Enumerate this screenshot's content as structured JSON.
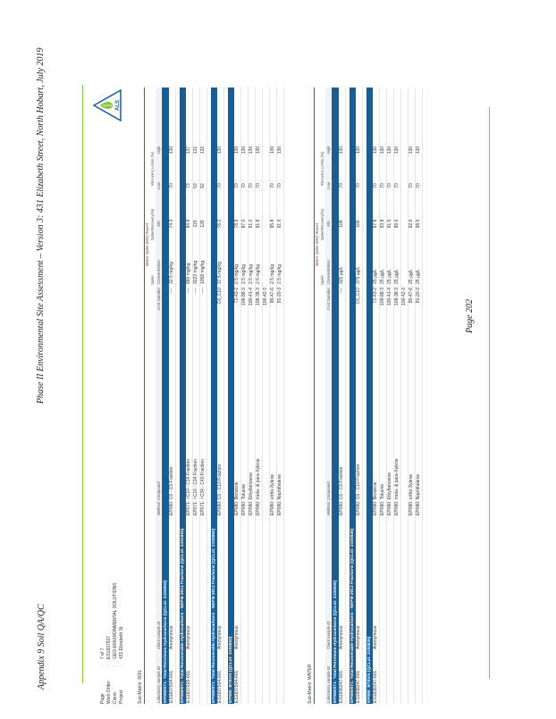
{
  "header": {
    "title": "Phase II Environmental Site Assessment – Version 3: 431 Elizabeth Street, North Hobart, July 2019",
    "appendix": "Appendix 9 Soil QA/QC",
    "page": "Page 202"
  },
  "meta": [
    {
      "key": "Page",
      "value": "7 of 7"
    },
    {
      "key": "Work Order",
      "value": "ES1837927"
    },
    {
      "key": "Client",
      "value": "GEO-ENVIRONMENTAL SOLUTIONS"
    },
    {
      "key": "Project",
      "value": "431 Elizabeth St"
    }
  ],
  "logo_text": "ALS",
  "soil": {
    "submatrix": "Sub-Matrix: SOIL",
    "group_labels": {
      "ms_report": "Matrix Spike (MS) Report",
      "spike": "Spike",
      "spike_rec": "SpikeRecovery(%)",
      "rec_limits": "Recovery Limits (%)"
    },
    "headers": {
      "lab": "Laboratory sample ID",
      "client": "Client sample ID",
      "method": "Method: Compound",
      "cas": "CAS Number",
      "conc": "Concentration",
      "ms": "MS",
      "low": "Low",
      "high": "High"
    },
    "sections": [
      {
        "title": "EP080/071: Total Petroleum Hydrocarbons  (QCLot: 2103852)",
        "rows": [
          {
            "lab": "ES1837504-001",
            "client": "Anonymous",
            "method": "EP080: C6 - C9 Fraction",
            "cas": "----",
            "conc": "32.5 mg/kg",
            "ms": "74.3",
            "low": "70",
            "high": "130"
          }
        ]
      },
      {
        "title": "EP080/071: Total Recoverable Hydrocarbons - NEPM 2013 Fractions  (QCLot: 2101822)",
        "rows": [
          {
            "lab": "ES1837928-001",
            "client": "Anonymous",
            "method": "EP071: >C10 - C16 Fraction",
            "cas": "----",
            "conc": "860 mg/kg",
            "ms": "94.8",
            "low": "73",
            "high": "137"
          },
          {
            "lab": "",
            "client": "",
            "method": "EP071: >C16 - C34 Fraction",
            "cas": "----",
            "conc": "3223 mg/kg",
            "ms": "115",
            "low": "53",
            "high": "131"
          },
          {
            "lab": "",
            "client": "",
            "method": "EP071: >C34 - C40 Fraction",
            "cas": "----",
            "conc": "1058 mg/kg",
            "ms": "128",
            "low": "52",
            "high": "132"
          }
        ]
      },
      {
        "title": "EP080/071: Total Recoverable Hydrocarbons - NEPM 2013 Fractions  (QCLot: 2103852)",
        "rows": [
          {
            "lab": "ES1837504-001",
            "client": "Anonymous",
            "method": "EP080: C6 - C10 Fraction",
            "cas": "C6_C10",
            "conc": "37.5 mg/kg",
            "ms": "76.2",
            "low": "70",
            "high": "130"
          }
        ]
      },
      {
        "title": "EP080: BTEXN  (QCLot: 2103852)",
        "rows": [
          {
            "lab": "ES1837504-001",
            "client": "Anonymous",
            "method": "EP080: Benzene",
            "cas": "71-43-2",
            "conc": "2.5 mg/kg",
            "ms": "78.9",
            "low": "70",
            "high": "130"
          },
          {
            "lab": "",
            "client": "",
            "method": "EP080: Toluene",
            "cas": "108-88-3",
            "conc": "2.5 mg/kg",
            "ms": "87.0",
            "low": "70",
            "high": "130"
          },
          {
            "lab": "",
            "client": "",
            "method": "EP080: Ethylbenzene",
            "cas": "100-41-4",
            "conc": "2.5 mg/kg",
            "ms": "91.0",
            "low": "70",
            "high": "130"
          },
          {
            "lab": "",
            "client": "",
            "method": "EP080: meta- & para-Xylene",
            "cas": "108-38-3",
            "conc": "2.5 mg/kg",
            "ms": "91.8",
            "low": "70",
            "high": "130"
          },
          {
            "lab": "",
            "client": "",
            "method": "",
            "cas": "106-42-3",
            "conc": "",
            "ms": "",
            "low": "",
            "high": ""
          },
          {
            "lab": "",
            "client": "",
            "method": "EP080: ortho-Xylene",
            "cas": "95-47-6",
            "conc": "2.5 mg/kg",
            "ms": "95.8",
            "low": "70",
            "high": "130"
          },
          {
            "lab": "",
            "client": "",
            "method": "EP080: Naphthalene",
            "cas": "91-20-3",
            "conc": "2.5 mg/kg",
            "ms": "91.0",
            "low": "70",
            "high": "130"
          }
        ]
      }
    ]
  },
  "water": {
    "submatrix": "Sub-Matrix: WATER",
    "group_labels": {
      "ms_report": "Matrix Spike (MS) Report",
      "spike": "Spike",
      "spike_rec": "SpikeRecovery(%)",
      "rec_limits": "Recovery Limits (%)"
    },
    "headers": {
      "lab": "Laboratory sample ID",
      "client": "Client sample ID",
      "method": "Method: Compound",
      "cas": "CAS Number",
      "conc": "Concentration",
      "ms": "MS",
      "low": "Low",
      "high": "High"
    },
    "sections": [
      {
        "title": "EP080/071: Total Petroleum Hydrocarbons  (QCLot: 2103835)",
        "rows": [
          {
            "lab": "ES1838347-001",
            "client": "Anonymous",
            "method": "EP080: C6 - C9 Fraction",
            "cas": "----",
            "conc": "325 µg/L",
            "ms": "108",
            "low": "70",
            "high": "130"
          }
        ]
      },
      {
        "title": "EP080/071: Total Recoverable Hydrocarbons - NEPM 2013 Fractions  (QCLot: 2103835)",
        "rows": [
          {
            "lab": "ES1838347-001",
            "client": "Anonymous",
            "method": "EP080: C6 - C10 Fraction",
            "cas": "C6_C10",
            "conc": "375 µg/L",
            "ms": "106",
            "low": "70",
            "high": "130"
          }
        ]
      },
      {
        "title": "EP080: BTEXN  (QCLot: 2103835)",
        "rows": [
          {
            "lab": "ES1838347-001",
            "client": "Anonymous",
            "method": "EP080: Benzene",
            "cas": "71-43-2",
            "conc": "25 µg/L",
            "ms": "97.8",
            "low": "70",
            "high": "130"
          },
          {
            "lab": "",
            "client": "",
            "method": "EP080: Toluene",
            "cas": "108-88-3",
            "conc": "25 µg/L",
            "ms": "93.8",
            "low": "70",
            "high": "130"
          },
          {
            "lab": "",
            "client": "",
            "method": "EP080: Ethylbenzene",
            "cas": "100-41-4",
            "conc": "25 µg/L",
            "ms": "91.5",
            "low": "70",
            "high": "130"
          },
          {
            "lab": "",
            "client": "",
            "method": "EP080: meta- & para-Xylene",
            "cas": "108-38-3",
            "conc": "25 µg/L",
            "ms": "89.6",
            "low": "70",
            "high": "130"
          },
          {
            "lab": "",
            "client": "",
            "method": "",
            "cas": "106-42-3",
            "conc": "",
            "ms": "",
            "low": "",
            "high": ""
          },
          {
            "lab": "",
            "client": "",
            "method": "EP080: ortho-Xylene",
            "cas": "95-47-6",
            "conc": "25 µg/L",
            "ms": "92.6",
            "low": "70",
            "high": "130"
          },
          {
            "lab": "",
            "client": "",
            "method": "EP080: Naphthalene",
            "cas": "91-20-3",
            "conc": "25 µg/L",
            "ms": "98.5",
            "low": "70",
            "high": "130"
          }
        ]
      }
    ]
  }
}
